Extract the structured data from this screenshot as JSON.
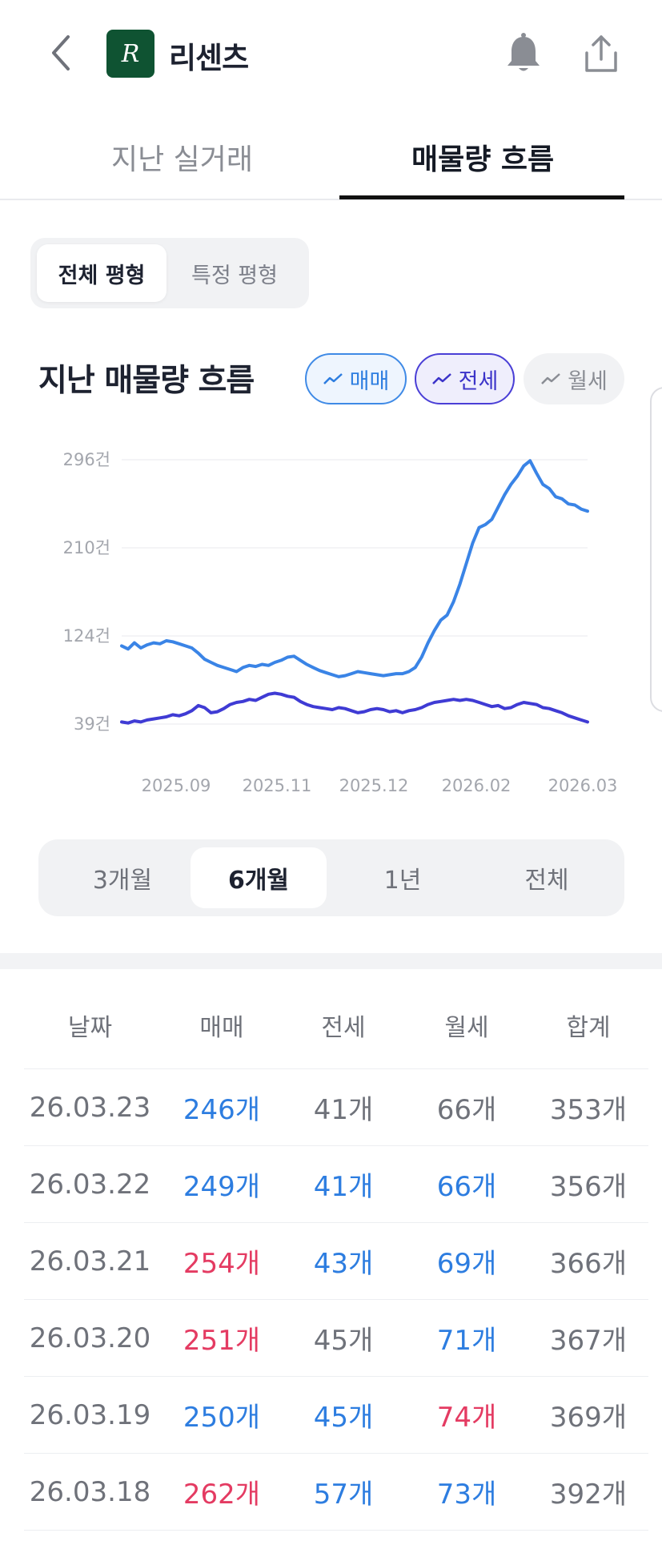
{
  "header": {
    "title": "리센츠",
    "logo_letter": "R",
    "logo_color": "#0f5332"
  },
  "tabs": [
    {
      "label": "지난 실거래"
    },
    {
      "label": "매물량 흐름"
    }
  ],
  "segment": {
    "options": [
      "전체 평형",
      "특정 평형"
    ],
    "selected": "전체 평형"
  },
  "chart_header": {
    "title": "지난 매물량 흐름",
    "filters": [
      {
        "label": "매매",
        "active": true,
        "color": "#2d7de0"
      },
      {
        "label": "전세",
        "active": true,
        "color": "#3b33c9"
      },
      {
        "label": "월세",
        "active": false,
        "color": "#8a8d94"
      }
    ]
  },
  "chart_data": {
    "type": "line",
    "y_ticks": [
      "296건",
      "210건",
      "124건",
      "39건"
    ],
    "x_ticks": [
      "2025.09",
      "2025.11",
      "2025.12",
      "2026.02",
      "2026.03"
    ],
    "ylim": [
      39,
      296
    ],
    "grid": true,
    "series": [
      {
        "name": "매매",
        "color": "#3a84e6",
        "values": [
          115,
          112,
          118,
          113,
          116,
          118,
          117,
          120,
          119,
          117,
          115,
          113,
          108,
          102,
          99,
          96,
          94,
          92,
          90,
          94,
          96,
          95,
          97,
          96,
          99,
          101,
          104,
          105,
          101,
          97,
          94,
          91,
          89,
          87,
          85,
          86,
          88,
          90,
          89,
          88,
          87,
          86,
          87,
          88,
          88,
          90,
          94,
          104,
          118,
          130,
          140,
          145,
          158,
          175,
          195,
          215,
          230,
          233,
          238,
          250,
          262,
          272,
          280,
          290,
          295,
          283,
          272,
          268,
          260,
          258,
          253,
          252,
          248,
          246
        ]
      },
      {
        "name": "전세",
        "color": "#3f3bd4",
        "values": [
          41,
          40,
          42,
          41,
          43,
          44,
          45,
          46,
          48,
          47,
          49,
          52,
          57,
          55,
          50,
          51,
          54,
          58,
          60,
          61,
          63,
          62,
          65,
          68,
          69,
          68,
          66,
          65,
          61,
          58,
          56,
          55,
          54,
          53,
          55,
          54,
          52,
          50,
          51,
          53,
          54,
          53,
          51,
          52,
          50,
          52,
          53,
          55,
          58,
          60,
          61,
          62,
          63,
          62,
          63,
          62,
          60,
          58,
          56,
          57,
          54,
          55,
          58,
          60,
          59,
          58,
          55,
          54,
          52,
          50,
          47,
          45,
          43,
          41
        ]
      }
    ]
  },
  "period": {
    "options": [
      "3개월",
      "6개월",
      "1년",
      "전체"
    ],
    "selected": "6개월"
  },
  "table": {
    "headers": [
      "날짜",
      "매매",
      "전세",
      "월세",
      "합계"
    ],
    "rows": [
      {
        "date": "26.03.23",
        "sale": "246개",
        "sale_c": "blue",
        "jeonse": "41개",
        "jeonse_c": "gray",
        "wolse": "66개",
        "wolse_c": "gray",
        "total": "353개"
      },
      {
        "date": "26.03.22",
        "sale": "249개",
        "sale_c": "blue",
        "jeonse": "41개",
        "jeonse_c": "blue",
        "wolse": "66개",
        "wolse_c": "blue",
        "total": "356개"
      },
      {
        "date": "26.03.21",
        "sale": "254개",
        "sale_c": "red",
        "jeonse": "43개",
        "jeonse_c": "blue",
        "wolse": "69개",
        "wolse_c": "blue",
        "total": "366개"
      },
      {
        "date": "26.03.20",
        "sale": "251개",
        "sale_c": "red",
        "jeonse": "45개",
        "jeonse_c": "gray",
        "wolse": "71개",
        "wolse_c": "blue",
        "total": "367개"
      },
      {
        "date": "26.03.19",
        "sale": "250개",
        "sale_c": "blue",
        "jeonse": "45개",
        "jeonse_c": "blue",
        "wolse": "74개",
        "wolse_c": "red",
        "total": "369개"
      },
      {
        "date": "26.03.18",
        "sale": "262개",
        "sale_c": "red",
        "jeonse": "57개",
        "jeonse_c": "blue",
        "wolse": "73개",
        "wolse_c": "blue",
        "total": "392개"
      }
    ]
  }
}
